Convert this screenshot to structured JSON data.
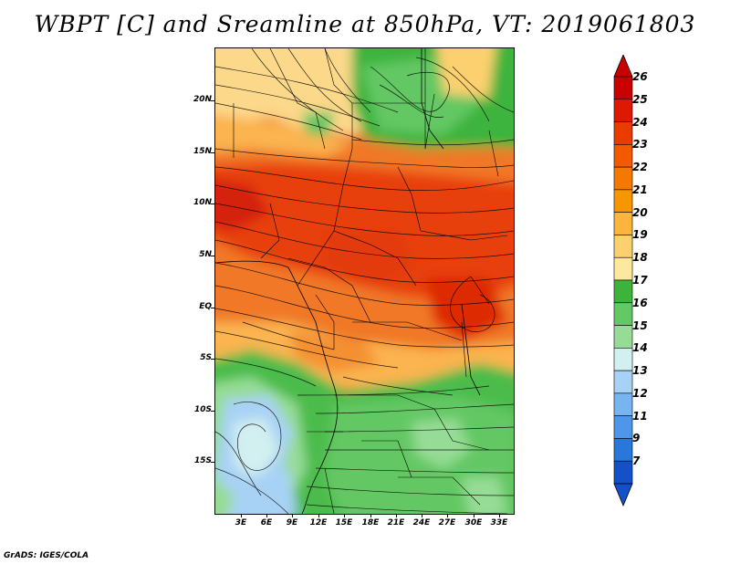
{
  "title": "WBPT [C] and Sreamline at 850hPa, VT: 2019061803",
  "footer": "GrADS: IGES/COLA",
  "map": {
    "lat_labels": [
      "20N",
      "15N",
      "10N",
      "5N",
      "EQ",
      "5S",
      "10S",
      "15S"
    ],
    "lon_labels": [
      "3E",
      "6E",
      "9E",
      "12E",
      "15E",
      "18E",
      "21E",
      "24E",
      "27E",
      "30E",
      "33E"
    ],
    "lat_range": [
      -19.5,
      24.5
    ],
    "lon_range": [
      0.5,
      33.5
    ]
  },
  "colorbar": {
    "labels": [
      "26",
      "25",
      "24",
      "23",
      "22",
      "21",
      "20",
      "19",
      "18",
      "17",
      "16",
      "15",
      "14",
      "13",
      "12",
      "11",
      "9",
      "7"
    ],
    "colors": [
      "#c80000",
      "#dd1a00",
      "#eb3c00",
      "#f25a00",
      "#f57800",
      "#f89600",
      "#fbb43c",
      "#fcd06e",
      "#fde8a0",
      "#3cb43c",
      "#64c864",
      "#96dc96",
      "#d2f0f0",
      "#a8d2f5",
      "#78b4f0",
      "#4f96ea",
      "#2878dc",
      "#1450c8"
    ]
  }
}
